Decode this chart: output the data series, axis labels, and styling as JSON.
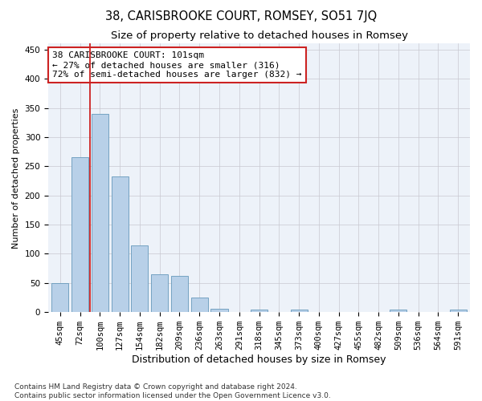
{
  "title": "38, CARISBROOKE COURT, ROMSEY, SO51 7JQ",
  "subtitle": "Size of property relative to detached houses in Romsey",
  "xlabel": "Distribution of detached houses by size in Romsey",
  "ylabel": "Number of detached properties",
  "bar_values": [
    50,
    265,
    340,
    233,
    115,
    65,
    62,
    25,
    6,
    0,
    5,
    0,
    5,
    0,
    0,
    0,
    0,
    5,
    0,
    0,
    5
  ],
  "bar_labels": [
    "45sqm",
    "72sqm",
    "100sqm",
    "127sqm",
    "154sqm",
    "182sqm",
    "209sqm",
    "236sqm",
    "263sqm",
    "291sqm",
    "318sqm",
    "345sqm",
    "373sqm",
    "400sqm",
    "427sqm",
    "455sqm",
    "482sqm",
    "509sqm",
    "536sqm",
    "564sqm",
    "591sqm"
  ],
  "bar_color": "#b8d0e8",
  "bar_edge_color": "#6699bb",
  "property_line_x": 1.5,
  "property_line_color": "#cc2222",
  "annotation_line1": "38 CARISBROOKE COURT: 101sqm",
  "annotation_line2": "← 27% of detached houses are smaller (316)",
  "annotation_line3": "72% of semi-detached houses are larger (832) →",
  "annotation_box_color": "#ffffff",
  "annotation_box_edge": "#cc2222",
  "ylim": [
    0,
    460
  ],
  "yticks": [
    0,
    50,
    100,
    150,
    200,
    250,
    300,
    350,
    400,
    450
  ],
  "footnote": "Contains HM Land Registry data © Crown copyright and database right 2024.\nContains public sector information licensed under the Open Government Licence v3.0.",
  "bg_color": "#edf2f9",
  "grid_color": "#c8c8d0",
  "title_fontsize": 10.5,
  "subtitle_fontsize": 9.5,
  "xlabel_fontsize": 9,
  "ylabel_fontsize": 8,
  "tick_fontsize": 7.5,
  "annot_fontsize": 8,
  "footnote_fontsize": 6.5
}
